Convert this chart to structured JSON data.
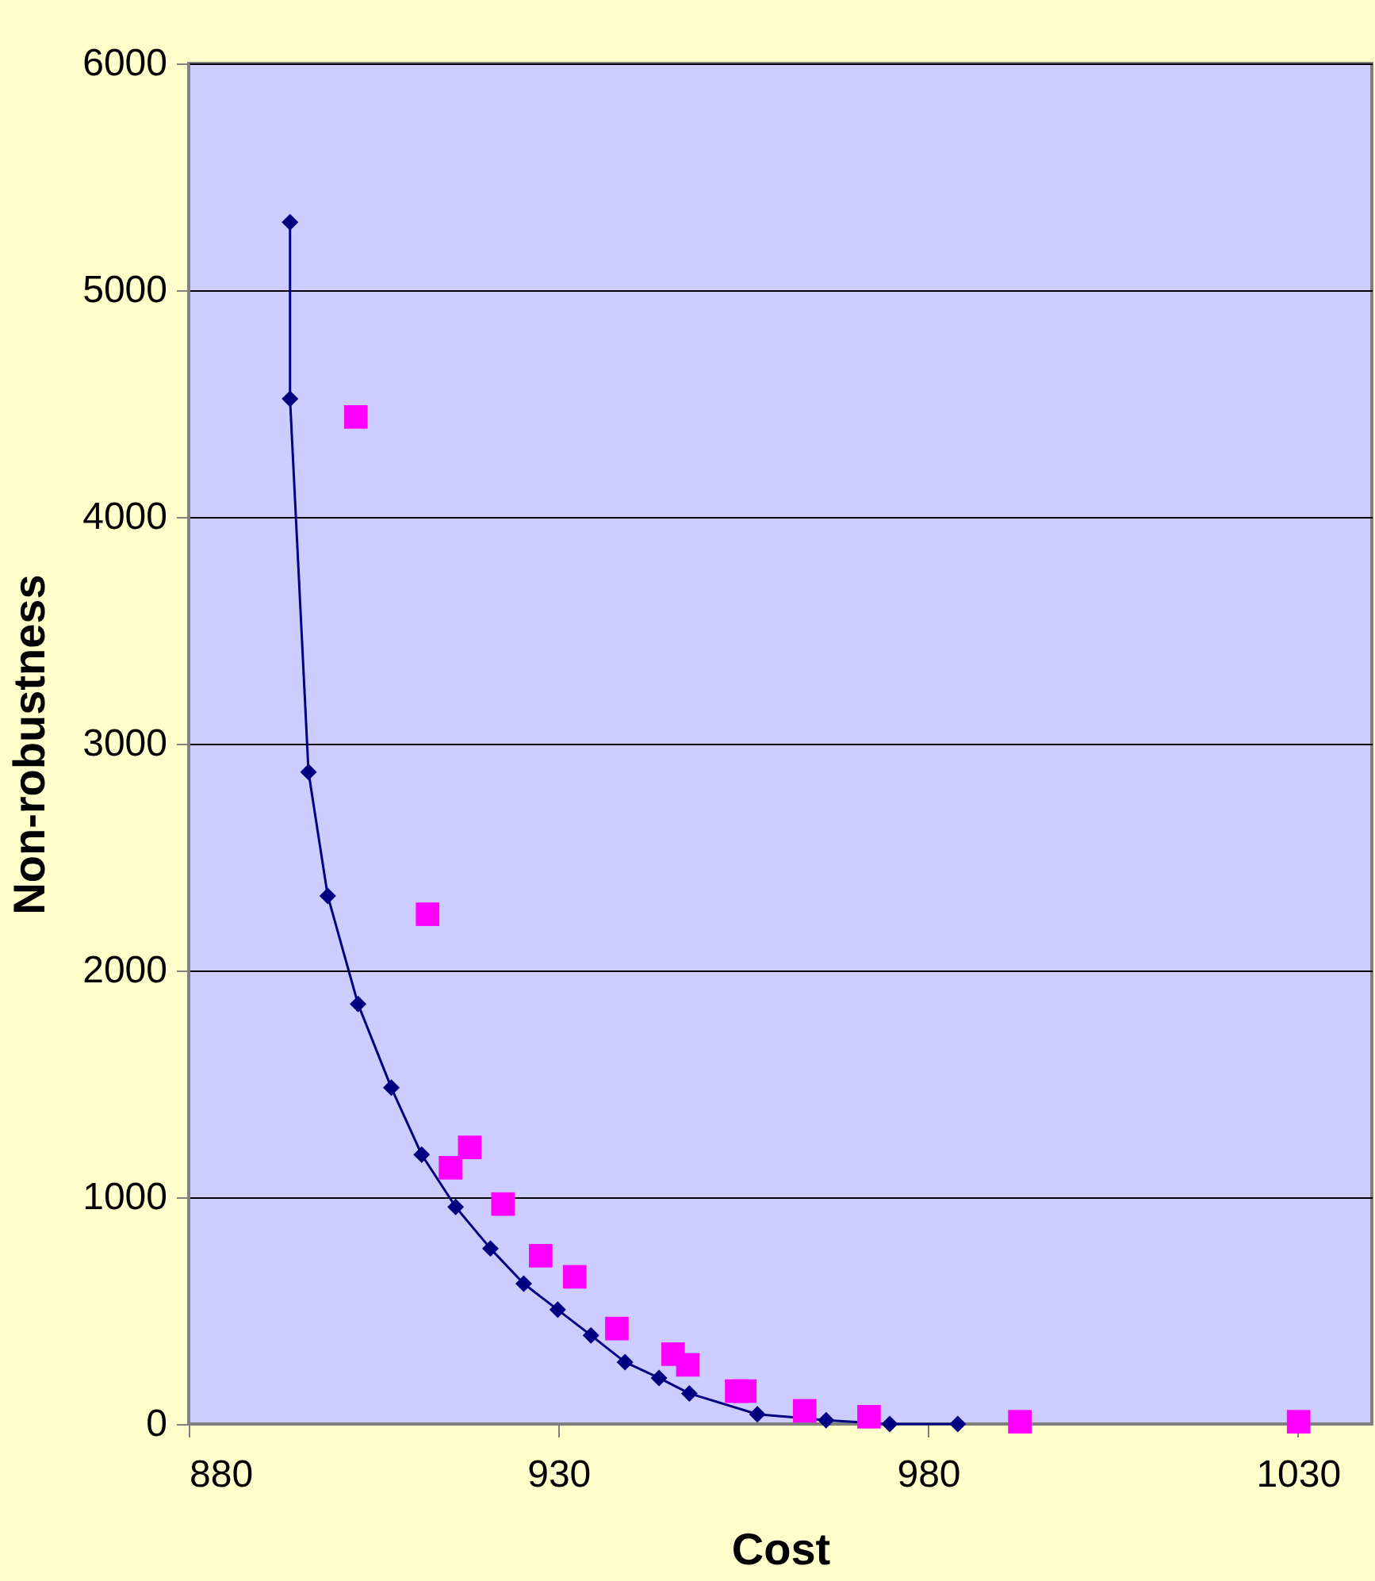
{
  "chart_data": {
    "type": "scatter",
    "xlabel": "Cost",
    "ylabel": "Non-robustness",
    "xlim": [
      880,
      1040
    ],
    "xticks": [
      880,
      930,
      980,
      1030
    ],
    "ylim": [
      0,
      6000
    ],
    "yticks": [
      0,
      1000,
      2000,
      3000,
      4000,
      5000,
      6000
    ],
    "grid": "y",
    "series": [
      {
        "type": "line",
        "marker": "diamond",
        "color": "#000080",
        "x": [
          893.7,
          893.7,
          896.2,
          898.8,
          902.9,
          907.4,
          911.5,
          916.1,
          920.8,
          925.3,
          929.9,
          934.4,
          939.0,
          943.6,
          947.7,
          956.9,
          966.2,
          974.8,
          984.0
        ],
        "values": [
          5300,
          4521,
          2875,
          2329,
          1852,
          1483,
          1188,
          957,
          774,
          619,
          504,
          391,
          273,
          203,
          135,
          43,
          17,
          0,
          0
        ]
      },
      {
        "marker": "square",
        "color": "#ff00ff",
        "x": [
          902.6,
          912.3,
          915.4,
          918.0,
          922.5,
          927.6,
          932.2,
          937.9,
          945.5,
          947.5,
          954.1,
          955.2,
          963.3,
          972.0,
          992.4,
          1030.1
        ],
        "values": [
          4441,
          2248,
          1130,
          1220,
          970,
          742,
          649,
          421,
          308,
          261,
          145,
          145,
          58,
          32,
          10,
          10
        ]
      }
    ]
  }
}
